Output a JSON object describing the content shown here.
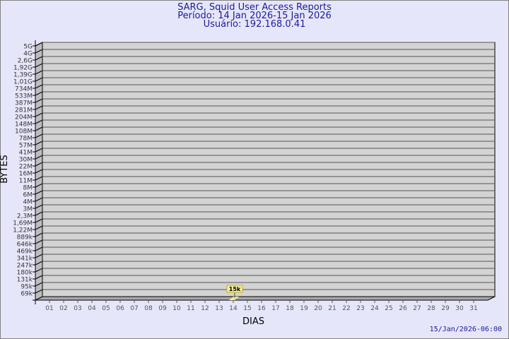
{
  "header": {
    "title": "SARG, Squid User Access Reports",
    "period": "Período: 14 Jan 2026-15 Jan 2026",
    "user": "Usuário: 192.168.0.41"
  },
  "footer": {
    "timestamp": "15/Jan/2026-06:00"
  },
  "chart_data": {
    "type": "bar",
    "xlabel": "DIAS",
    "ylabel": "BYTES",
    "y_scale": "log",
    "grid": true,
    "categories": [
      "01",
      "02",
      "03",
      "04",
      "05",
      "06",
      "07",
      "08",
      "09",
      "10",
      "11",
      "12",
      "13",
      "14",
      "15",
      "16",
      "17",
      "18",
      "19",
      "20",
      "21",
      "22",
      "23",
      "24",
      "25",
      "26",
      "27",
      "28",
      "29",
      "30",
      "31"
    ],
    "y_ticks": [
      "5G",
      "4G",
      "2,6G",
      "1,92G",
      "1,39G",
      "1,01G",
      "734M",
      "533M",
      "387M",
      "281M",
      "204M",
      "148M",
      "108M",
      "78M",
      "57M",
      "41M",
      "30M",
      "22M",
      "16M",
      "11M",
      "8M",
      "6M",
      "4M",
      "3M",
      "2,3M",
      "1,69M",
      "1,22M",
      "889k",
      "646k",
      "469k",
      "341k",
      "247k",
      "180k",
      "131k",
      "95k",
      "69k"
    ],
    "series": [
      {
        "points": [
          {
            "x": "14",
            "y": 15000,
            "label": "15k"
          }
        ]
      }
    ],
    "colors": {
      "wall": "#d3d3d3",
      "bar": "#ffe88a",
      "label_bg": "#f5eb9b",
      "text": "#1a1a9c"
    }
  }
}
